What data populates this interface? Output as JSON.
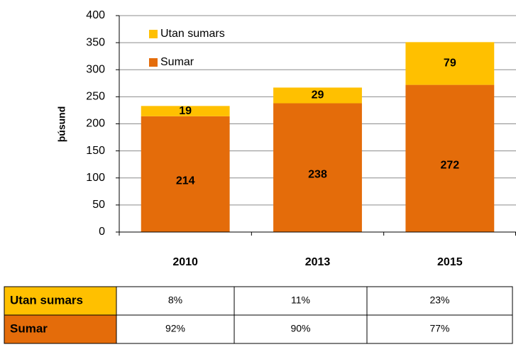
{
  "chart_data": {
    "type": "stacked_bar",
    "y_label": "þúsund",
    "categories": [
      "2010",
      "2013",
      "2015"
    ],
    "series": [
      {
        "name": "Sumar",
        "color": "#e46c0a",
        "values": [
          214,
          238,
          272
        ]
      },
      {
        "name": "Utan sumars",
        "color": "#ffc000",
        "values": [
          19,
          29,
          79
        ]
      }
    ],
    "ylim": [
      0,
      400
    ],
    "yticks": [
      0,
      50,
      100,
      150,
      200,
      250,
      300,
      350,
      400
    ],
    "grid": true,
    "legend": "upper left"
  },
  "table": {
    "rows": [
      [
        "Utan sumars",
        "8%",
        "11%",
        "23%"
      ],
      [
        "Sumar",
        "92%",
        "90%",
        "77%"
      ]
    ]
  }
}
